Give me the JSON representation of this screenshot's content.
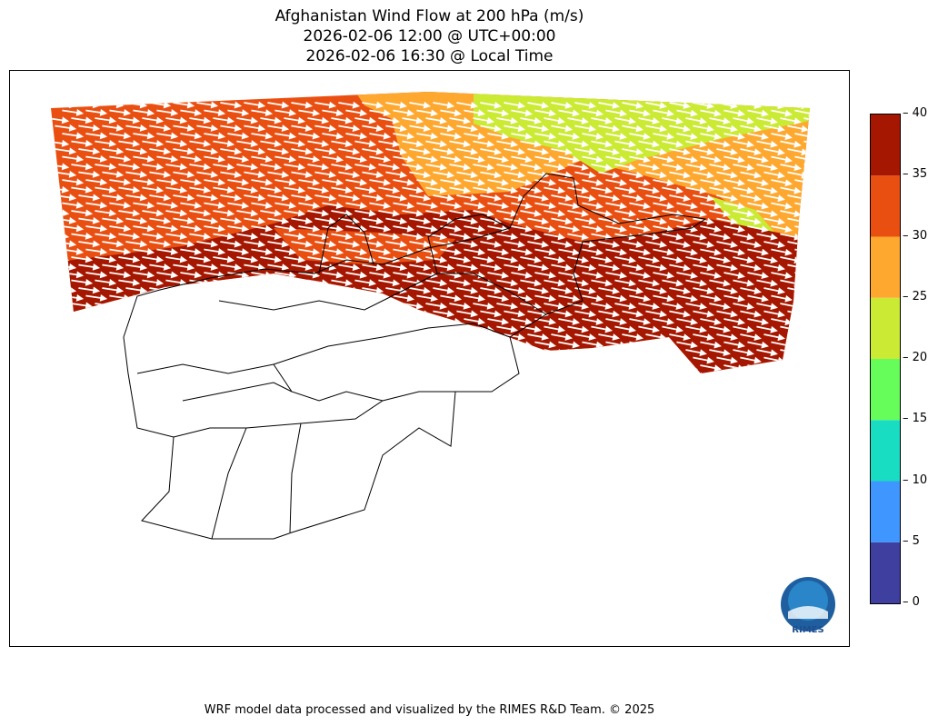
{
  "title": {
    "line1": "Afghanistan Wind Flow at 200 hPa (m/s)",
    "line2": "2026-02-06 12:00 @ UTC+00:00",
    "line3": "2026-02-06 16:30 @ Local Time"
  },
  "colorbar": {
    "min": 0,
    "max": 40,
    "ticks": [
      "0",
      "5",
      "10",
      "15",
      "20",
      "25",
      "30",
      "35",
      "40"
    ],
    "levels": [
      {
        "range": [
          0,
          5
        ],
        "color": "#3f3f9f"
      },
      {
        "range": [
          5,
          10
        ],
        "color": "#3f96fe"
      },
      {
        "range": [
          10,
          15
        ],
        "color": "#19ddc2"
      },
      {
        "range": [
          15,
          20
        ],
        "color": "#66fc5a"
      },
      {
        "range": [
          20,
          25
        ],
        "color": "#cbea33"
      },
      {
        "range": [
          25,
          30
        ],
        "color": "#fea82f"
      },
      {
        "range": [
          30,
          35
        ],
        "color": "#ea4f12"
      },
      {
        "range": [
          35,
          40
        ],
        "color": "#a51700"
      }
    ]
  },
  "logo": {
    "text": "RIMES"
  },
  "footer": "WRF model data processed and visualized by the RIMES R&D Team. © 2025"
}
